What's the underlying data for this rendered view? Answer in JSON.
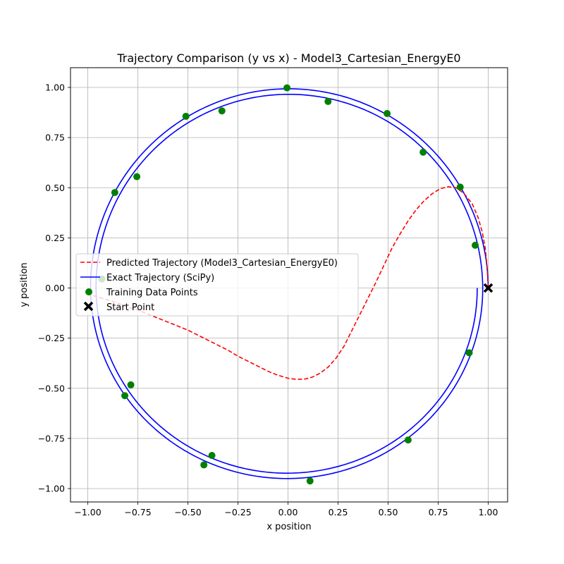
{
  "chart_data": {
    "type": "line",
    "title": "Trajectory Comparison (y vs x) - Model3_Cartesian_EnergyE0",
    "xlabel": "x position",
    "ylabel": "y position",
    "xlim": [
      -1.1,
      1.1
    ],
    "ylim": [
      -1.05,
      1.1
    ],
    "grid": true,
    "legend_position": "center-left",
    "xticks": [
      -1.0,
      -0.75,
      -0.5,
      -0.25,
      0.0,
      0.25,
      0.5,
      0.75,
      1.0
    ],
    "xtick_labels": [
      "−1.00",
      "−0.75",
      "−0.50",
      "−0.25",
      "0.00",
      "0.25",
      "0.50",
      "0.75",
      "1.00"
    ],
    "yticks": [
      -1.0,
      -0.75,
      -0.5,
      -0.25,
      0.0,
      0.25,
      0.5,
      0.75,
      1.0
    ],
    "ytick_labels": [
      "−1.00",
      "−0.75",
      "−0.50",
      "−0.25",
      "0.00",
      "0.25",
      "0.50",
      "0.75",
      "1.00"
    ],
    "series": [
      {
        "name": "Predicted Trajectory (Model3_Cartesian_EnergyE0)",
        "style": "dashed",
        "color": "#ff0000",
        "x": [
          1.0,
          0.995,
          0.985,
          0.97,
          0.95,
          0.92,
          0.88,
          0.84,
          0.8,
          0.76,
          0.72,
          0.68,
          0.64,
          0.6,
          0.56,
          0.52,
          0.48,
          0.44,
          0.4,
          0.36,
          0.32,
          0.28,
          0.24,
          0.2,
          0.16,
          0.12,
          0.08,
          0.04,
          0.0,
          -0.05,
          -0.1,
          -0.15,
          -0.2,
          -0.25,
          -0.3,
          -0.35,
          -0.4,
          -0.45,
          -0.5,
          -0.55,
          -0.6,
          -0.65,
          -0.7,
          -0.75,
          -0.8,
          -0.85,
          -0.9,
          -0.95,
          -0.98
        ],
        "y": [
          0.0,
          0.1,
          0.2,
          0.28,
          0.35,
          0.42,
          0.47,
          0.5,
          0.505,
          0.495,
          0.47,
          0.435,
          0.39,
          0.335,
          0.27,
          0.2,
          0.115,
          0.03,
          -0.05,
          -0.13,
          -0.21,
          -0.29,
          -0.35,
          -0.395,
          -0.425,
          -0.445,
          -0.455,
          -0.455,
          -0.45,
          -0.435,
          -0.415,
          -0.39,
          -0.365,
          -0.34,
          -0.31,
          -0.285,
          -0.26,
          -0.235,
          -0.21,
          -0.19,
          -0.17,
          -0.15,
          -0.13,
          -0.11,
          -0.095,
          -0.075,
          -0.06,
          -0.045,
          -0.035
        ]
      },
      {
        "name": "Exact Trajectory (SciPy)",
        "style": "solid",
        "color": "#0000ff",
        "type": "spiral",
        "x_center": 0.0,
        "y_center": 0.0,
        "r_start": 1.0,
        "r_end": 0.945,
        "y_scale_lower": 0.97,
        "turns": 2.0
      }
    ],
    "training_points": {
      "name": "Training Data Points",
      "color": "#008000",
      "x": [
        -0.005,
        0.2,
        0.495,
        0.675,
        0.86,
        0.935,
        0.905,
        0.6,
        0.11,
        -0.42,
        -0.815,
        -0.865,
        -0.51,
        -0.38,
        -0.785,
        -0.755,
        -0.33,
        -0.93
      ],
      "y": [
        0.998,
        0.93,
        0.87,
        0.677,
        0.503,
        0.213,
        -0.323,
        -0.758,
        -0.962,
        -0.882,
        -0.537,
        0.476,
        0.856,
        -0.835,
        -0.483,
        0.555,
        0.883,
        0.045
      ]
    },
    "start_point": {
      "name": "Start Point",
      "color": "#000000",
      "x": 1.0,
      "y": 0.0
    }
  }
}
